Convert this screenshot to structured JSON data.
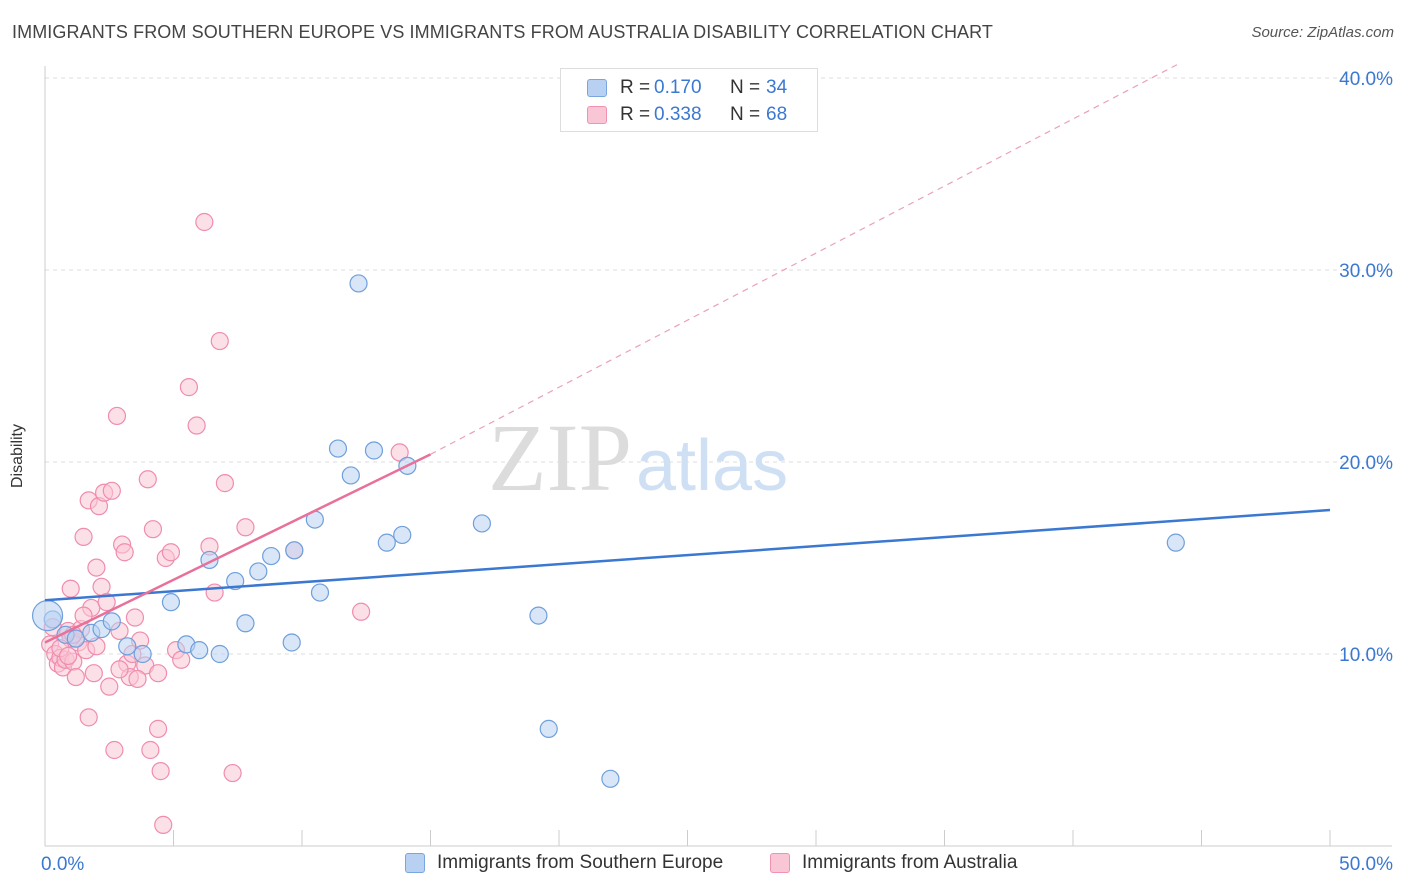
{
  "title": "IMMIGRANTS FROM SOUTHERN EUROPE VS IMMIGRANTS FROM AUSTRALIA DISABILITY CORRELATION CHART",
  "source": "Source: ZipAtlas.com",
  "watermark": {
    "zip": "ZIP",
    "atlas": "atlas"
  },
  "colors": {
    "blue": "#3b78d1",
    "blue_fill": "#b8d1f3",
    "pink": "#e8709a",
    "pink_fill": "#f9c6d6",
    "grid": "#dddddd"
  },
  "legend_top": {
    "rows": [
      {
        "r_label": "R =",
        "r_value": "0.170",
        "n_label": "N =",
        "n_value": "34"
      },
      {
        "r_label": "R =",
        "r_value": "0.338",
        "n_label": "N =",
        "n_value": "68"
      }
    ]
  },
  "legend_bottom": {
    "blue_label": "Immigrants from Southern Europe",
    "pink_label": "Immigrants from Australia"
  },
  "chart_data": {
    "type": "scatter",
    "title": "IMMIGRANTS FROM SOUTHERN EUROPE VS IMMIGRANTS FROM AUSTRALIA DISABILITY CORRELATION CHART",
    "xlabel": "",
    "ylabel": "Disability",
    "xlim": [
      0,
      50
    ],
    "ylim": [
      0,
      40
    ],
    "x_tick_labels": [
      "0.0%",
      "50.0%"
    ],
    "y_tick_labels": [
      "10.0%",
      "20.0%",
      "30.0%",
      "40.0%"
    ],
    "y_tick_values": [
      10,
      20,
      30,
      40
    ],
    "series": [
      {
        "name": "Immigrants from Southern Europe",
        "color": "#3b78d1",
        "R": 0.17,
        "N": 34,
        "trend": {
          "x0": 0,
          "y0": 12.8,
          "x1": 50,
          "y1": 17.5,
          "dashed_extension": false
        },
        "points": [
          [
            0.3,
            11.8
          ],
          [
            0.8,
            11.0
          ],
          [
            1.2,
            10.8
          ],
          [
            1.8,
            11.1
          ],
          [
            2.2,
            11.3
          ],
          [
            2.6,
            11.7
          ],
          [
            3.2,
            10.4
          ],
          [
            3.8,
            10.0
          ],
          [
            4.9,
            12.7
          ],
          [
            5.5,
            10.5
          ],
          [
            6.0,
            10.2
          ],
          [
            6.4,
            14.9
          ],
          [
            6.8,
            10.0
          ],
          [
            7.4,
            13.8
          ],
          [
            7.8,
            11.6
          ],
          [
            8.3,
            14.3
          ],
          [
            8.8,
            15.1
          ],
          [
            9.6,
            10.6
          ],
          [
            9.7,
            15.4
          ],
          [
            10.5,
            17.0
          ],
          [
            10.7,
            13.2
          ],
          [
            11.4,
            20.7
          ],
          [
            11.9,
            19.3
          ],
          [
            12.2,
            29.3
          ],
          [
            12.8,
            20.6
          ],
          [
            13.3,
            15.8
          ],
          [
            13.9,
            16.2
          ],
          [
            14.1,
            19.8
          ],
          [
            17.0,
            16.8
          ],
          [
            19.2,
            12.0
          ],
          [
            19.6,
            6.1
          ],
          [
            22.0,
            3.5
          ],
          [
            44.0,
            15.8
          ],
          [
            0.1,
            12.0
          ]
        ]
      },
      {
        "name": "Immigrants from Australia",
        "color": "#e8709a",
        "R": 0.338,
        "N": 68,
        "trend": {
          "x0": 0,
          "y0": 10.6,
          "x1": 15,
          "y1": 20.4,
          "dashed_extension": true,
          "dash_to_x": 44.2,
          "dash_to_y": 40.8
        },
        "points": [
          [
            0.2,
            10.5
          ],
          [
            0.3,
            11.4
          ],
          [
            0.4,
            10.0
          ],
          [
            0.5,
            9.5
          ],
          [
            0.6,
            9.8
          ],
          [
            0.7,
            9.3
          ],
          [
            0.8,
            9.7
          ],
          [
            0.9,
            11.2
          ],
          [
            1.0,
            13.4
          ],
          [
            1.0,
            10.8
          ],
          [
            1.1,
            9.6
          ],
          [
            1.2,
            8.8
          ],
          [
            1.3,
            10.6
          ],
          [
            1.4,
            11.3
          ],
          [
            1.5,
            16.1
          ],
          [
            1.6,
            10.2
          ],
          [
            1.7,
            18.0
          ],
          [
            1.7,
            6.7
          ],
          [
            1.8,
            12.4
          ],
          [
            1.9,
            9.0
          ],
          [
            2.0,
            14.5
          ],
          [
            2.1,
            17.7
          ],
          [
            2.2,
            13.5
          ],
          [
            2.3,
            18.4
          ],
          [
            2.4,
            12.7
          ],
          [
            2.5,
            8.3
          ],
          [
            2.6,
            18.5
          ],
          [
            2.7,
            5.0
          ],
          [
            2.8,
            22.4
          ],
          [
            2.9,
            11.2
          ],
          [
            3.0,
            15.7
          ],
          [
            3.1,
            15.3
          ],
          [
            3.2,
            9.5
          ],
          [
            3.3,
            8.8
          ],
          [
            3.4,
            10.0
          ],
          [
            3.5,
            11.9
          ],
          [
            3.7,
            10.7
          ],
          [
            3.9,
            9.4
          ],
          [
            4.0,
            19.1
          ],
          [
            4.1,
            5.0
          ],
          [
            4.2,
            16.5
          ],
          [
            4.4,
            9.0
          ],
          [
            4.4,
            6.1
          ],
          [
            4.5,
            3.9
          ],
          [
            4.6,
            1.1
          ],
          [
            4.7,
            15.0
          ],
          [
            4.9,
            15.3
          ],
          [
            5.1,
            10.2
          ],
          [
            5.3,
            9.7
          ],
          [
            5.6,
            23.9
          ],
          [
            5.9,
            21.9
          ],
          [
            6.2,
            32.5
          ],
          [
            6.4,
            15.6
          ],
          [
            6.6,
            13.2
          ],
          [
            6.8,
            26.3
          ],
          [
            7.0,
            18.9
          ],
          [
            7.3,
            3.8
          ],
          [
            7.8,
            16.6
          ],
          [
            9.7,
            15.4
          ],
          [
            12.3,
            12.2
          ],
          [
            13.8,
            20.5
          ],
          [
            1.1,
            11.0
          ],
          [
            0.6,
            10.3
          ],
          [
            2.9,
            9.2
          ],
          [
            1.5,
            12.0
          ],
          [
            3.6,
            8.7
          ],
          [
            0.9,
            9.9
          ],
          [
            2.0,
            10.4
          ]
        ]
      }
    ]
  }
}
